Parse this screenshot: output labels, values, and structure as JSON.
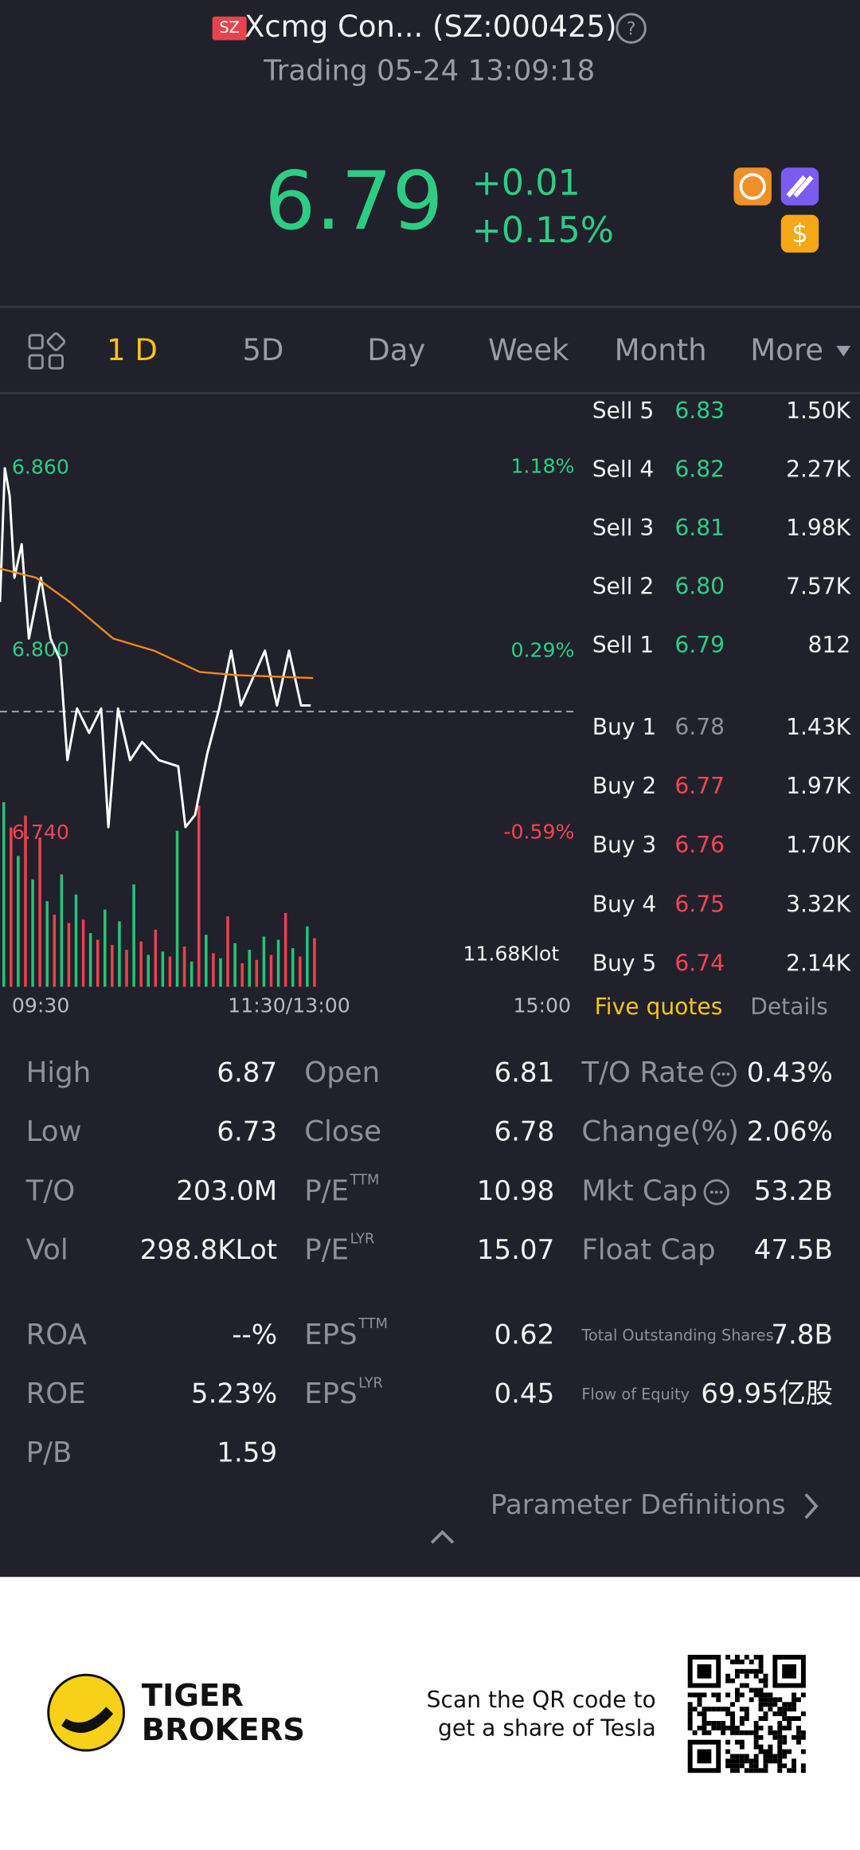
{
  "header": {
    "exchange_badge": "SZ",
    "title": "Xcmg Con... (SZ:000425)",
    "help": "?",
    "status": "Trading 05-24 13:09:18"
  },
  "quote": {
    "price": "6.79",
    "change": "+0.01",
    "change_pct": "+0.15%",
    "badge": "$"
  },
  "tabs": [
    "1 D",
    "5D",
    "Day",
    "Week",
    "Month",
    "More"
  ],
  "chart_data": [
    {
      "type": "line",
      "xlim": [
        0,
        240
      ],
      "xticks": [
        {
          "value": 0,
          "label": "09:30"
        },
        {
          "value": 120,
          "label": "11:30/13:00"
        },
        {
          "value": 240,
          "label": "15:00"
        }
      ],
      "ylim": [
        6.719,
        6.882
      ],
      "yticks": [
        {
          "value": 6.86,
          "label": "6.860"
        },
        {
          "value": 6.8,
          "label": "6.800"
        },
        {
          "value": 6.74,
          "label": "6.740"
        }
      ],
      "y2lim": [
        -0.9,
        1.5
      ],
      "y2ticks": [
        {
          "value": 1.18,
          "label": "1.18%"
        },
        {
          "value": 0.29,
          "label": "0.29%"
        },
        {
          "value": -0.59,
          "label": "-0.59%"
        }
      ],
      "baseline": 6.78,
      "up_color": "#2ecc86",
      "down_color": "#f0455a",
      "series": [
        {
          "color": "#ffffff",
          "x": [
            0,
            2,
            4,
            6,
            9,
            12,
            17,
            21,
            25,
            28,
            32,
            37,
            42,
            45,
            49,
            54,
            59,
            66,
            74,
            77,
            81,
            86,
            91,
            96,
            100,
            105,
            110,
            115,
            120,
            125,
            129
          ],
          "values": [
            6.816,
            6.86,
            6.851,
            6.824,
            6.835,
            6.804,
            6.824,
            6.804,
            6.797,
            6.764,
            6.781,
            6.773,
            6.781,
            6.742,
            6.781,
            6.764,
            6.77,
            6.764,
            6.762,
            6.742,
            6.746,
            6.766,
            6.781,
            6.8,
            6.782,
            6.791,
            6.8,
            6.782,
            6.8,
            6.782,
            6.782
          ]
        },
        {
          "color": "#f08a1c",
          "x": [
            0,
            15,
            29,
            47,
            64,
            83,
            98,
            130
          ],
          "values": [
            6.827,
            6.824,
            6.816,
            6.804,
            6.8,
            6.793,
            6.792,
            6.791
          ]
        }
      ]
    },
    {
      "type": "bar",
      "xlim": [
        0,
        240
      ],
      "ylim": [
        0,
        11.68
      ],
      "yticks": [
        {
          "value": 11.68,
          "label": "11.68Klot"
        }
      ],
      "series": [
        {
          "color": "#27c27a",
          "x": [
            0,
            6,
            12,
            18,
            24,
            30,
            36,
            42,
            48,
            54,
            60,
            66,
            72,
            78,
            84,
            90,
            96,
            102,
            108,
            114,
            120,
            126
          ],
          "values": [
            11.0,
            7.8,
            6.4,
            5.1,
            6.7,
            5.5,
            3.2,
            4.6,
            3.9,
            6.1,
            1.9,
            2.1,
            9.3,
            1.5,
            3.1,
            1.7,
            2.6,
            2.2,
            3.0,
            2.8,
            2.3,
            3.6
          ]
        },
        {
          "color": "#e8424f",
          "x": [
            3,
            9,
            15,
            21,
            27,
            33,
            39,
            45,
            51,
            57,
            63,
            69,
            75,
            81,
            87,
            93,
            99,
            105,
            111,
            117,
            123,
            129
          ],
          "values": [
            9.5,
            10.2,
            8.9,
            4.3,
            3.8,
            4.0,
            2.8,
            2.5,
            2.2,
            2.7,
            3.4,
            1.8,
            2.4,
            10.8,
            2.0,
            4.2,
            1.4,
            1.6,
            1.9,
            4.4,
            1.8,
            2.9
          ]
        }
      ]
    }
  ],
  "order_book": {
    "sell": [
      {
        "label": "Sell 5",
        "price": "6.83",
        "volume": "1.50K"
      },
      {
        "label": "Sell 4",
        "price": "6.82",
        "volume": "2.27K"
      },
      {
        "label": "Sell 3",
        "price": "6.81",
        "volume": "1.98K"
      },
      {
        "label": "Sell 2",
        "price": "6.80",
        "volume": "7.57K"
      },
      {
        "label": "Sell 1",
        "price": "6.79",
        "volume": "812"
      }
    ],
    "buy": [
      {
        "label": "Buy 1",
        "price": "6.78",
        "volume": "1.43K"
      },
      {
        "label": "Buy 2",
        "price": "6.77",
        "volume": "1.97K"
      },
      {
        "label": "Buy 3",
        "price": "6.76",
        "volume": "1.70K"
      },
      {
        "label": "Buy 4",
        "price": "6.75",
        "volume": "3.32K"
      },
      {
        "label": "Buy 5",
        "price": "6.74",
        "volume": "2.14K"
      }
    ],
    "tabs": [
      "Five quotes",
      "Details"
    ]
  },
  "stats": [
    [
      {
        "label": "High",
        "value": "6.87"
      },
      {
        "label": "Low",
        "value": "6.73"
      },
      {
        "label": "T/O",
        "value": "203.0M"
      },
      {
        "label": "Vol",
        "value": "298.8KLot"
      },
      {
        "label": "ROA",
        "value": "--%"
      },
      {
        "label": "ROE",
        "value": "5.23%"
      },
      {
        "label": "P/B",
        "value": "1.59"
      }
    ],
    [
      {
        "label": "Open",
        "value": "6.81"
      },
      {
        "label": "Close",
        "value": "6.78"
      },
      {
        "label": "P/E",
        "sup": "TTM",
        "value": "10.98"
      },
      {
        "label": "P/E",
        "sup": "LYR",
        "value": "15.07"
      },
      {
        "label": "EPS",
        "sup": "TTM",
        "value": "0.62"
      },
      {
        "label": "EPS",
        "sup": "LYR",
        "value": "0.45"
      }
    ],
    [
      {
        "label": "T/O Rate",
        "info_icon": true,
        "value": "0.43%"
      },
      {
        "label": "Change(%)",
        "value": "2.06%"
      },
      {
        "label": "Mkt Cap",
        "info_icon": true,
        "value": "53.2B"
      },
      {
        "label": "Float Cap",
        "value": "47.5B"
      },
      {
        "label": "Total Outstanding Shares",
        "value": "7.8B"
      },
      {
        "label": "Flow of Equity",
        "value": "69.95亿股"
      }
    ]
  ],
  "definitions_link": "Parameter Definitions",
  "footer": {
    "brand": [
      "TIGER",
      "BROKERS"
    ],
    "cta": [
      "Scan the QR code to",
      "get a share of Tesla"
    ]
  }
}
